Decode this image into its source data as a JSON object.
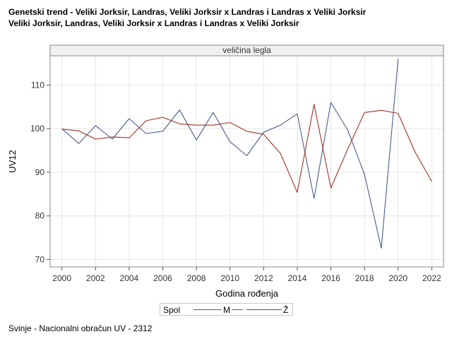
{
  "title_line1": "Genetski trend - Veliki Jorksir, Landras, Veliki Jorksir x Landras i Landras x Veliki Jorksir",
  "title_line2": "Veliki Jorksir, Landras, Veliki Jorksir x Landras i Landras x Veliki Jorksir",
  "footer": "Svinje - Nacionalni obračun UV - 2312",
  "legend": {
    "title": "Spol",
    "items": [
      "M",
      "Ž"
    ]
  },
  "colors": {
    "M": "#4a5d8a",
    "Z": "#a0332a",
    "grid": "#e6e6e6",
    "frame": "#888888",
    "panel_header_bg": "#f0f0f0"
  },
  "chart_data": {
    "type": "line",
    "panel_label": "veličina legla",
    "xlabel": "Godina rođenja",
    "ylabel": "UV12",
    "xlim": [
      1999.3,
      2022.7
    ],
    "ylim": [
      68.3,
      116.7
    ],
    "xticks": [
      2000,
      2002,
      2004,
      2006,
      2008,
      2010,
      2012,
      2014,
      2016,
      2018,
      2020,
      2022
    ],
    "yticks": [
      70,
      80,
      90,
      100,
      110
    ],
    "grid": true,
    "legend_position": "bottom-center",
    "series": [
      {
        "name": "M",
        "x": [
          2000,
          2001,
          2002,
          2003,
          2004,
          2005,
          2006,
          2007,
          2008,
          2009,
          2010,
          2011,
          2012,
          2013,
          2014,
          2015,
          2016,
          2017,
          2018,
          2019,
          2020
        ],
        "values": [
          100.0,
          96.6,
          100.7,
          97.6,
          102.3,
          98.9,
          99.4,
          104.3,
          97.4,
          103.7,
          97.0,
          93.8,
          99.2,
          100.8,
          103.4,
          84.0,
          106.0,
          99.7,
          89.5,
          72.6,
          116.0
        ]
      },
      {
        "name": "Ž",
        "x": [
          2000,
          2001,
          2002,
          2003,
          2004,
          2005,
          2006,
          2007,
          2008,
          2009,
          2010,
          2011,
          2012,
          2013,
          2014,
          2015,
          2016,
          2017,
          2018,
          2019,
          2020,
          2021,
          2022
        ],
        "values": [
          99.9,
          99.5,
          97.6,
          98.1,
          97.9,
          101.8,
          102.6,
          101.1,
          100.8,
          100.8,
          101.4,
          99.4,
          98.7,
          94.3,
          85.4,
          105.6,
          86.4,
          95.3,
          103.7,
          104.2,
          103.5,
          94.7,
          87.9
        ]
      }
    ]
  }
}
